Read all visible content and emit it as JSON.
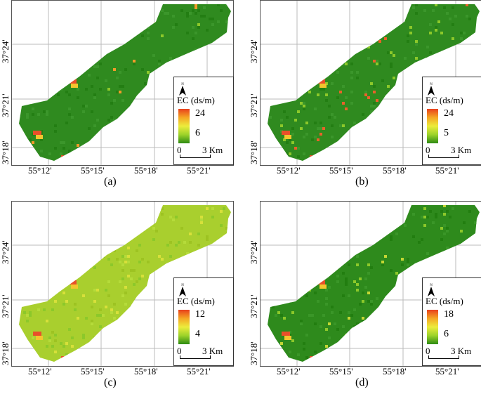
{
  "panels": [
    {
      "id": "a",
      "caption": "(a)",
      "legend_title": "EC (ds/m)",
      "max_label": "24",
      "min_label": "6",
      "ramp": [
        "#e8401c",
        "#f5a623",
        "#ecec3c",
        "#9cd22a",
        "#2e8b12"
      ],
      "base_color": "#2f8a1f",
      "hot_color": "#f29a2a",
      "hot_density": 0.02
    },
    {
      "id": "b",
      "caption": "(b)",
      "legend_title": "EC (ds/m)",
      "max_label": "24",
      "min_label": "5",
      "ramp": [
        "#e8401c",
        "#f5a623",
        "#ecec3c",
        "#9cd22a",
        "#2e8b12"
      ],
      "base_color": "#2f8a1f",
      "hot_color": "#e8622a",
      "hot_density": 0.06
    },
    {
      "id": "c",
      "caption": "(c)",
      "legend_title": "EC (ds/m)",
      "max_label": "12",
      "min_label": "4",
      "ramp": [
        "#e8401c",
        "#f5a623",
        "#ecec3c",
        "#9cd22a",
        "#2e8b12"
      ],
      "base_color": "#a9cf2e",
      "hot_color": "#d7e03a",
      "hot_density": 0.1
    },
    {
      "id": "d",
      "caption": "(d)",
      "legend_title": "EC (ds/m)",
      "max_label": "18",
      "min_label": "6",
      "ramp": [
        "#e8401c",
        "#f5a623",
        "#ecec3c",
        "#9cd22a",
        "#2e8b12"
      ],
      "base_color": "#2e8a1c",
      "hot_color": "#c3d634",
      "hot_density": 0.04
    }
  ],
  "lat_labels": [
    "37°24'",
    "37°21'",
    "37°18'"
  ],
  "lon_labels": [
    "55°12'",
    "55°15'",
    "55°18'",
    "55°21'"
  ],
  "scale": {
    "zero": "0",
    "end": "3 Km"
  },
  "north_symbol": "N"
}
